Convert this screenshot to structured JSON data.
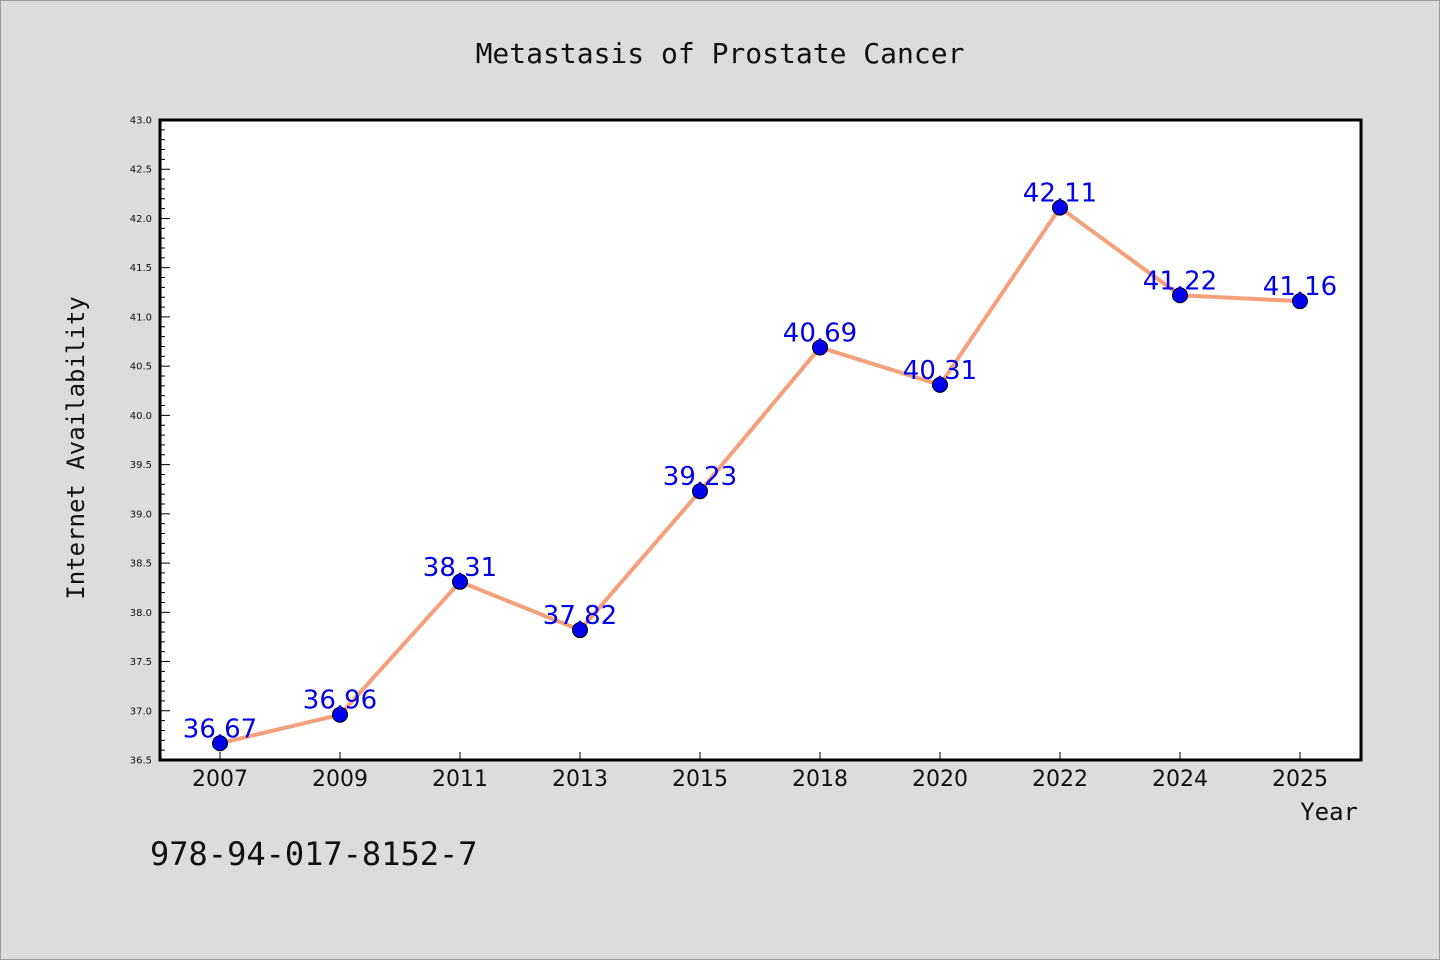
{
  "chart_data": {
    "type": "line",
    "title": "Metastasis of Prostate Cancer",
    "xlabel": "Year",
    "ylabel": "Internet Availability",
    "categories": [
      "2007",
      "2009",
      "2011",
      "2013",
      "2015",
      "2018",
      "2020",
      "2022",
      "2024",
      "2025"
    ],
    "values": [
      36.67,
      36.96,
      38.31,
      37.82,
      39.23,
      40.69,
      40.31,
      42.11,
      41.22,
      41.16
    ],
    "data_labels": [
      "36.67",
      "36.96",
      "38.31",
      "37.82",
      "39.23",
      "40.69",
      "40.31",
      "42.11",
      "41.22",
      "41.16"
    ],
    "ylim": [
      36.5,
      43.0
    ],
    "yticks": [
      "36.5",
      "37.0",
      "37.5",
      "38.0",
      "38.5",
      "39.0",
      "39.5",
      "40.0",
      "40.5",
      "41.0",
      "41.5",
      "42.0",
      "42.5",
      "43.0"
    ],
    "grid": false,
    "legend": "none",
    "colors": {
      "line": "#f4a07a",
      "marker": "#0000ee",
      "label": "#0000ee",
      "plot_bg": "#ffffff",
      "figure_bg": "#dcdcdc"
    }
  },
  "footnote": "978-94-017-8152-7"
}
